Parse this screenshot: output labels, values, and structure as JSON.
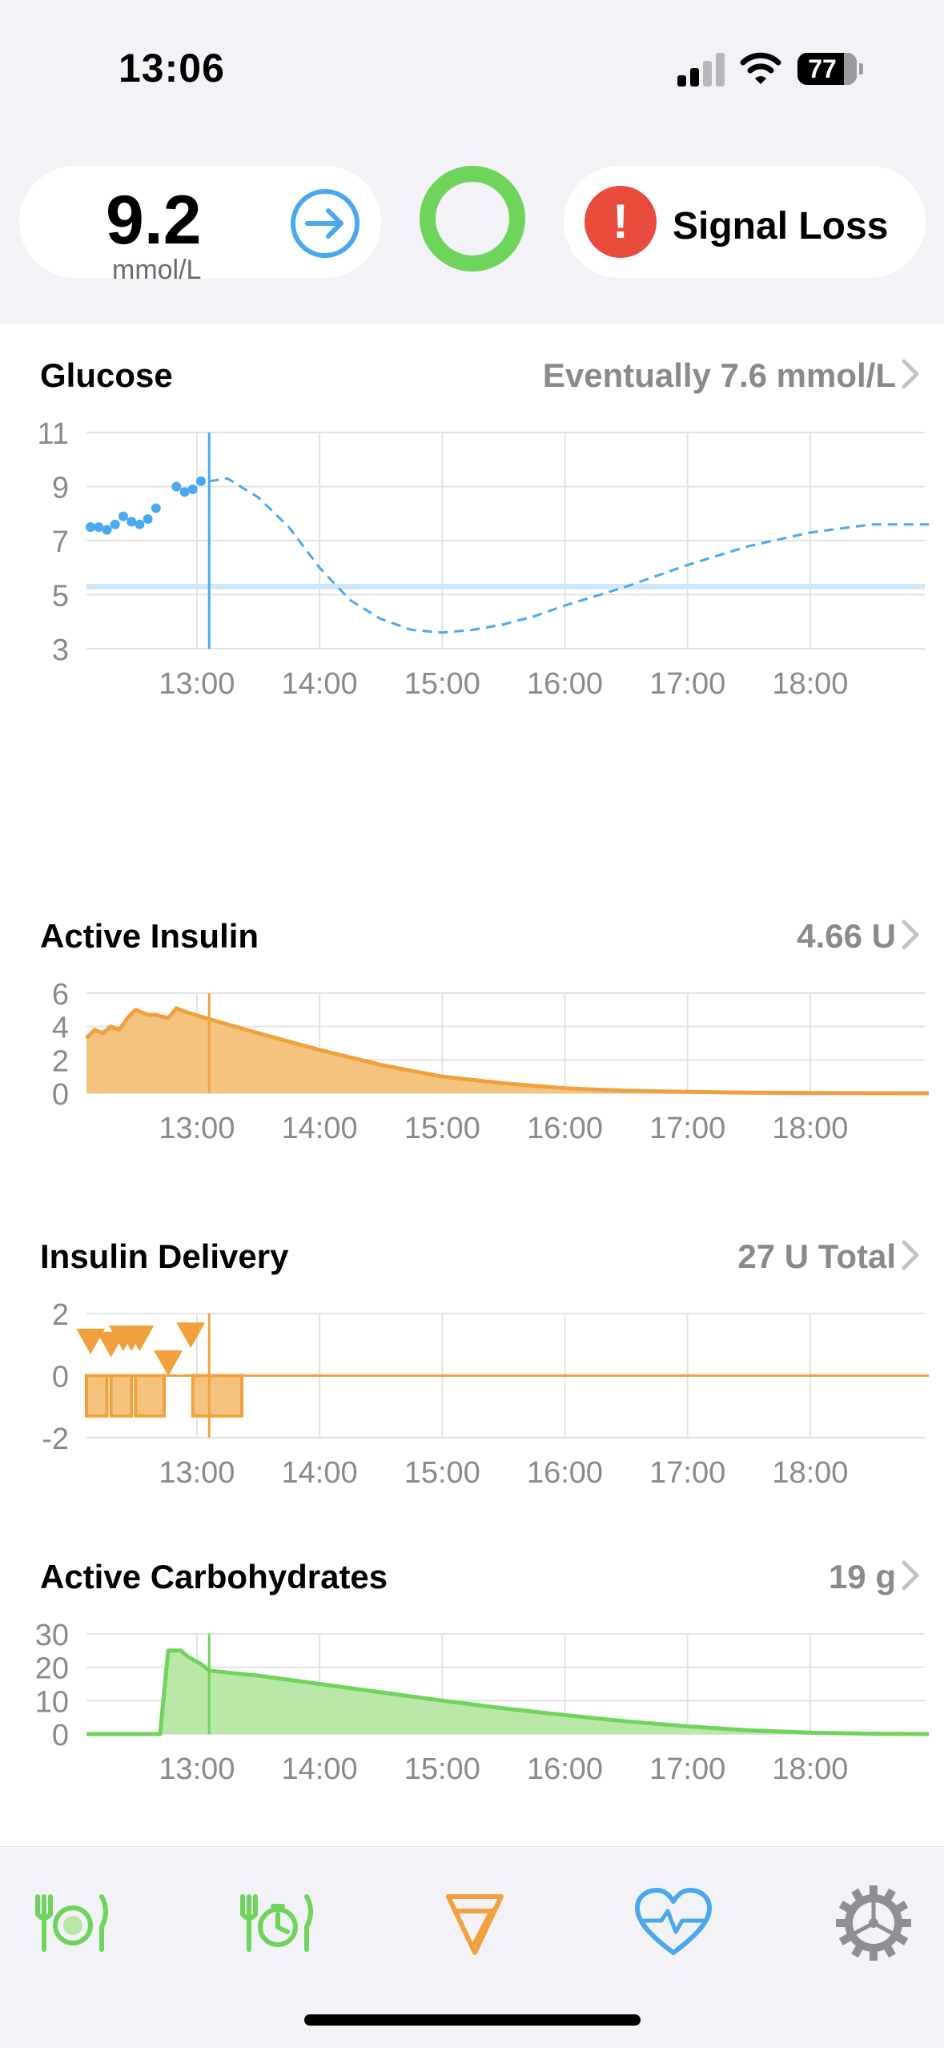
{
  "status_bar": {
    "time": "13:06",
    "battery_level": "77",
    "icons": [
      "cellular-signal-icon",
      "wifi-icon",
      "battery-icon"
    ]
  },
  "hud": {
    "glucose": {
      "value": "9.2",
      "unit": "mmol/L",
      "trend_icon": "arrow-right-circle-icon"
    },
    "loop_status_icon": "loop-ring-icon",
    "status_pill": {
      "label": "Signal Loss",
      "icon": "alert-exclamation-icon"
    }
  },
  "colors": {
    "glucose": "#4aa8ef",
    "insulin": "#f0a13d",
    "insulin_fill": "#f4c47f",
    "carbs": "#6fd45c",
    "carbs_fill": "#b9e8a6",
    "loop": "#6fd45c",
    "alert": "#e94b3c"
  },
  "sections": {
    "glucose": {
      "title": "Glucose",
      "value": "Eventually 7.6 mmol/L"
    },
    "active_insulin": {
      "title": "Active Insulin",
      "value": "4.66 U"
    },
    "insulin_delivery": {
      "title": "Insulin Delivery",
      "value": "27 U Total"
    },
    "active_carbs": {
      "title": "Active Carbohydrates",
      "value": "19 g"
    }
  },
  "tab_bar": {
    "icons": [
      "carb-entry-icon",
      "pre-meal-icon",
      "bolus-icon",
      "health-heart-icon",
      "settings-gear-icon"
    ]
  },
  "chart_data": [
    {
      "type": "scatter",
      "title": "Glucose",
      "x_tick_labels": [
        "13:00",
        "14:00",
        "15:00",
        "16:00",
        "17:00",
        "18:00"
      ],
      "y_tick_labels": [
        "11",
        "9",
        "7",
        "5",
        "3"
      ],
      "ylim": [
        3,
        11
      ],
      "xlim": [
        "12:06",
        "18:58"
      ],
      "now": "13:06",
      "target_range": [
        5.2,
        5.4
      ],
      "series": [
        {
          "kind": "points",
          "x": [
            "12:08",
            "12:12",
            "12:16",
            "12:20",
            "12:24",
            "12:28",
            "12:32",
            "12:36",
            "12:40",
            "12:50",
            "12:54",
            "12:58",
            "13:02"
          ],
          "y": [
            7.5,
            7.5,
            7.4,
            7.6,
            7.9,
            7.7,
            7.6,
            7.8,
            8.2,
            9.0,
            8.8,
            8.9,
            9.2
          ]
        },
        {
          "kind": "prediction",
          "x": [
            "13:06",
            "13:15",
            "13:30",
            "13:45",
            "14:00",
            "14:15",
            "14:30",
            "14:45",
            "15:00",
            "15:15",
            "15:30",
            "15:45",
            "16:00",
            "16:30",
            "17:00",
            "17:30",
            "18:00",
            "18:30",
            "18:58"
          ],
          "y": [
            9.2,
            9.3,
            8.6,
            7.5,
            6.0,
            4.8,
            4.1,
            3.7,
            3.6,
            3.7,
            3.9,
            4.2,
            4.6,
            5.3,
            6.1,
            6.8,
            7.3,
            7.6,
            7.6
          ]
        }
      ]
    },
    {
      "type": "area",
      "title": "Active Insulin",
      "x_tick_labels": [
        "13:00",
        "14:00",
        "15:00",
        "16:00",
        "17:00",
        "18:00"
      ],
      "y_tick_labels": [
        "6",
        "4",
        "2",
        "0"
      ],
      "ylim": [
        0,
        6
      ],
      "xlim": [
        "12:06",
        "18:58"
      ],
      "now": "13:06",
      "x": [
        "12:06",
        "12:10",
        "12:14",
        "12:18",
        "12:22",
        "12:26",
        "12:30",
        "12:36",
        "12:40",
        "12:46",
        "12:50",
        "12:54",
        "13:00",
        "13:10",
        "13:30",
        "14:00",
        "14:30",
        "15:00",
        "15:30",
        "16:00",
        "16:30",
        "17:00",
        "17:30",
        "18:00",
        "18:58"
      ],
      "y": [
        3.3,
        3.8,
        3.6,
        4.0,
        3.8,
        4.5,
        5.0,
        4.7,
        4.7,
        4.5,
        5.1,
        4.9,
        4.66,
        4.3,
        3.6,
        2.6,
        1.7,
        1.0,
        0.6,
        0.3,
        0.15,
        0.08,
        0.04,
        0.02,
        0.0
      ]
    },
    {
      "type": "bar",
      "title": "Insulin Delivery",
      "x_tick_labels": [
        "13:00",
        "14:00",
        "15:00",
        "16:00",
        "17:00",
        "18:00"
      ],
      "y_tick_labels": [
        "2",
        "0",
        "-2"
      ],
      "ylim": [
        -2,
        2
      ],
      "xlim": [
        "12:06",
        "18:58"
      ],
      "now": "13:06",
      "basal_segments": [
        {
          "start": "12:06",
          "end": "12:16",
          "rate": -1.3
        },
        {
          "start": "12:16",
          "end": "12:18",
          "rate": 0
        },
        {
          "start": "12:18",
          "end": "12:28",
          "rate": -1.3
        },
        {
          "start": "12:28",
          "end": "12:30",
          "rate": 0
        },
        {
          "start": "12:30",
          "end": "12:44",
          "rate": -1.3
        },
        {
          "start": "12:44",
          "end": "12:58",
          "rate": 0
        },
        {
          "start": "12:58",
          "end": "13:22",
          "rate": -1.3
        },
        {
          "start": "13:22",
          "end": "18:58",
          "rate": 0
        }
      ],
      "boluses": {
        "x": [
          "12:08",
          "12:18",
          "12:24",
          "12:28",
          "12:32",
          "12:46",
          "12:57"
        ],
        "y": [
          1.1,
          1.0,
          1.2,
          1.2,
          1.2,
          0.4,
          1.3
        ]
      }
    },
    {
      "type": "area",
      "title": "Active Carbohydrates",
      "x_tick_labels": [
        "13:00",
        "14:00",
        "15:00",
        "16:00",
        "17:00",
        "18:00"
      ],
      "y_tick_labels": [
        "30",
        "20",
        "10",
        "0"
      ],
      "ylim": [
        0,
        30
      ],
      "xlim": [
        "12:06",
        "18:58"
      ],
      "now": "13:06",
      "x": [
        "12:06",
        "12:42",
        "12:46",
        "12:52",
        "12:56",
        "13:02",
        "13:06",
        "13:30",
        "14:00",
        "14:30",
        "15:00",
        "15:30",
        "16:00",
        "16:30",
        "17:00",
        "17:30",
        "18:00",
        "18:30",
        "18:58"
      ],
      "y": [
        0,
        0,
        25,
        25,
        23,
        21,
        19,
        17.5,
        15,
        12.5,
        10,
        7.7,
        5.7,
        3.8,
        2.3,
        1.1,
        0.4,
        0.1,
        0
      ]
    }
  ]
}
